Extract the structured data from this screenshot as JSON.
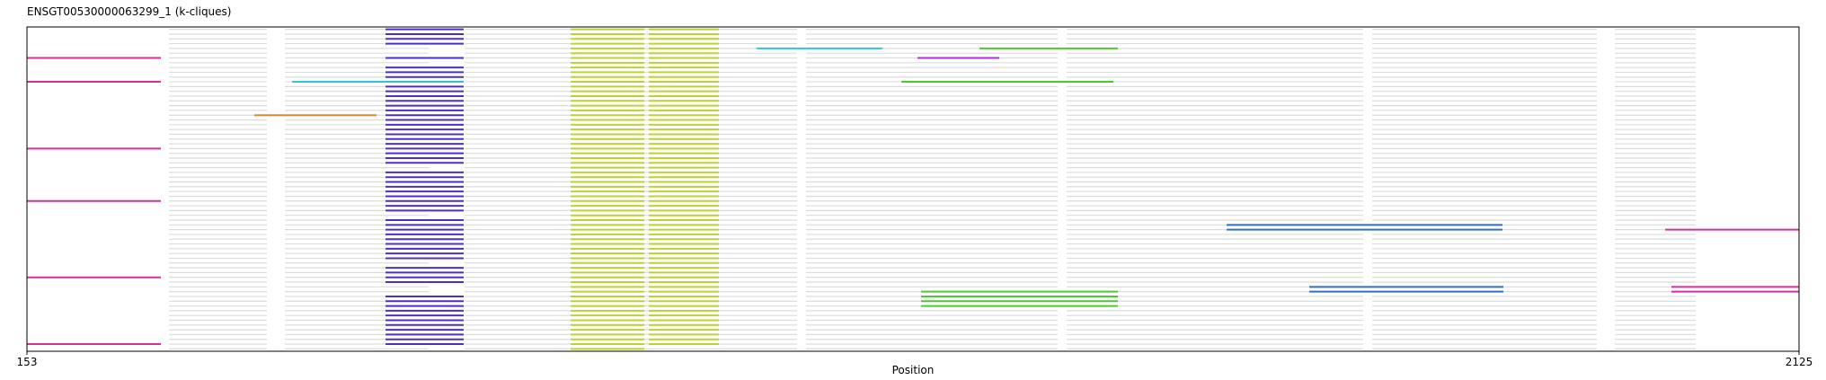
{
  "chart_data": {
    "type": "segments",
    "title": "ENSGT00530000063299_1 (k-cliques)",
    "x_label": "Position",
    "xlim": [
      153,
      2125
    ],
    "xticks": [
      153,
      2125
    ],
    "n_rows": 68,
    "background": {
      "color": "#dcdcdc",
      "segments": [
        [
          311,
          420
        ],
        [
          440,
          600
        ],
        [
          640,
          1010
        ],
        [
          1020,
          1300
        ],
        [
          1310,
          1640
        ],
        [
          1650,
          1900
        ],
        [
          1920,
          2010
        ]
      ]
    },
    "series": [
      {
        "color": "#d62e9c",
        "start": 153,
        "end": 302,
        "rows": [
          6,
          11,
          25,
          36,
          52,
          66
        ]
      },
      {
        "color": "#4b2fc7",
        "start": 552,
        "end": 639,
        "rows": [
          0,
          1,
          2,
          3,
          6,
          8,
          9,
          10,
          11,
          12,
          13,
          14,
          15,
          16,
          17,
          18,
          19,
          20,
          21,
          22,
          23,
          24,
          25,
          26,
          27,
          28,
          30,
          31,
          32,
          33,
          34,
          35,
          36,
          37,
          38,
          40,
          41,
          42,
          43,
          44,
          45,
          46,
          47,
          48,
          50,
          51,
          52,
          53,
          56,
          57,
          58,
          59,
          60,
          61,
          62,
          63,
          64,
          65,
          66
        ]
      },
      {
        "color": "#b8d334",
        "start": 758,
        "end": 840,
        "rows": [
          0,
          1,
          2,
          3,
          4,
          5,
          6,
          7,
          8,
          9,
          10,
          11,
          12,
          13,
          14,
          15,
          16,
          17,
          18,
          19,
          20,
          21,
          22,
          23,
          24,
          25,
          26,
          27,
          28,
          29,
          30,
          31,
          32,
          33,
          34,
          35,
          36,
          37,
          38,
          39,
          40,
          41,
          42,
          43,
          44,
          45,
          46,
          47,
          48,
          49,
          50,
          51,
          52,
          53,
          54,
          55,
          56,
          57,
          58,
          59,
          60,
          61,
          62,
          63,
          64,
          65,
          66,
          67
        ]
      },
      {
        "color": "#b8d334",
        "start": 845,
        "end": 923,
        "rows": [
          0,
          1,
          2,
          3,
          4,
          5,
          6,
          7,
          8,
          9,
          10,
          11,
          12,
          13,
          14,
          15,
          16,
          17,
          18,
          19,
          20,
          21,
          22,
          23,
          24,
          25,
          26,
          27,
          28,
          29,
          30,
          31,
          32,
          33,
          34,
          35,
          36,
          37,
          38,
          39,
          40,
          41,
          42,
          43,
          44,
          45,
          46,
          47,
          48,
          49,
          50,
          51,
          52,
          53,
          54,
          55,
          56,
          57,
          58,
          59,
          60,
          61,
          62,
          63,
          64,
          65,
          66
        ]
      },
      {
        "color": "#2fc4d6",
        "start": 965,
        "end": 1105,
        "rows": [
          4
        ]
      },
      {
        "color": "#2fc4d6",
        "start": 448,
        "end": 639,
        "rows": [
          11
        ]
      },
      {
        "color": "#4bc92f",
        "start": 1213,
        "end": 1367,
        "rows": [
          4
        ]
      },
      {
        "color": "#4bc92f",
        "start": 1126,
        "end": 1362,
        "rows": [
          11
        ]
      },
      {
        "color": "#4bc92f",
        "start": 1148,
        "end": 1367,
        "rows": [
          55,
          56,
          57,
          58
        ]
      },
      {
        "color": "#b02fd6",
        "start": 1144,
        "end": 1235,
        "rows": [
          6
        ]
      },
      {
        "color": "#d68a2f",
        "start": 406,
        "end": 542,
        "rows": [
          18
        ]
      },
      {
        "color": "#2f6fc4",
        "start": 1488,
        "end": 1795,
        "rows": [
          41,
          42
        ]
      },
      {
        "color": "#2f6fc4",
        "start": 1580,
        "end": 1796,
        "rows": [
          54,
          55
        ]
      },
      {
        "color": "#d62e9c",
        "start": 1976,
        "end": 2125,
        "rows": [
          42
        ]
      },
      {
        "color": "#d62e9c",
        "start": 1983,
        "end": 2125,
        "rows": [
          54,
          55
        ]
      }
    ]
  }
}
